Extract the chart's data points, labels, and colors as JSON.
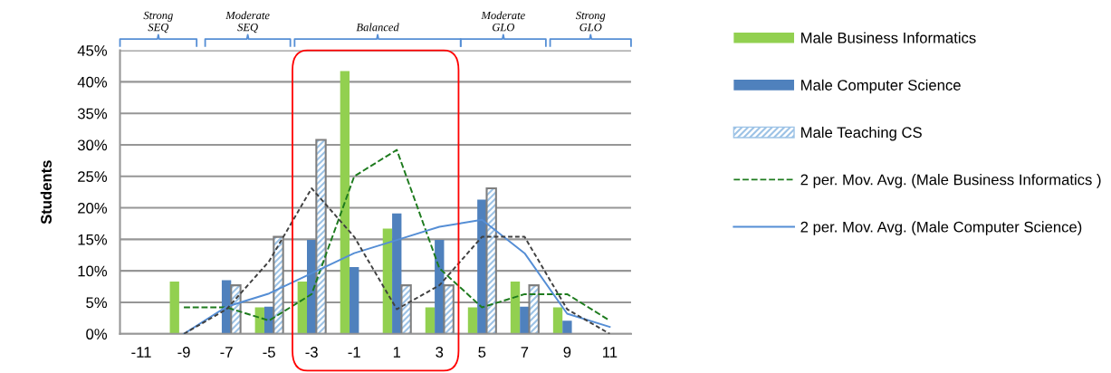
{
  "chart_data": {
    "type": "bar",
    "ylabel": "Students",
    "categories": [
      "-11",
      "-9",
      "-7",
      "-5",
      "-3",
      "-1",
      "1",
      "3",
      "5",
      "7",
      "9",
      "11"
    ],
    "series": [
      {
        "name": "Male Business Informatics",
        "color": "#92d050",
        "values": [
          0,
          8.3,
          0,
          4.2,
          8.3,
          41.7,
          16.7,
          4.2,
          4.2,
          8.3,
          4.2,
          0
        ]
      },
      {
        "name": "Male Computer Science",
        "color": "#4f81bd",
        "values": [
          0,
          0,
          8.5,
          4.3,
          14.9,
          10.6,
          19.1,
          14.9,
          21.3,
          4.3,
          2.1,
          0
        ]
      },
      {
        "name": "Male Teaching CS",
        "color": "#9dc3e6",
        "values": [
          0,
          0,
          7.7,
          15.4,
          30.8,
          0,
          7.7,
          7.7,
          23.1,
          7.7,
          0,
          0
        ]
      },
      {
        "name": "2 per. Mov. Avg. (Male Business Informatics )",
        "type": "line",
        "line_style": "dashed",
        "color": "#1e7b1e",
        "values": [
          null,
          4.2,
          4.2,
          2.1,
          6.3,
          25,
          29.2,
          10.4,
          4.2,
          6.3,
          6.3,
          2.1
        ]
      },
      {
        "name": "2 per. Mov. Avg. (Male Computer Science)",
        "type": "line",
        "line_style": "solid",
        "color": "#558ed5",
        "values": [
          null,
          0,
          4.3,
          6.4,
          9.6,
          12.8,
          14.9,
          17.0,
          18.1,
          12.8,
          3.2,
          1.1
        ]
      },
      {
        "type": "line",
        "line_style": "dotted",
        "color": "#404040",
        "values": [
          null,
          0,
          3.9,
          11.5,
          23.1,
          15.4,
          3.9,
          7.7,
          15.4,
          15.4,
          3.9,
          0
        ]
      }
    ],
    "ylim": [
      0,
      45
    ],
    "yticks": [
      {
        "value": 0,
        "label": "0%"
      },
      {
        "value": 5,
        "label": "5%"
      },
      {
        "value": 10,
        "label": "10%"
      },
      {
        "value": 15,
        "label": "15%"
      },
      {
        "value": 20,
        "label": "20%"
      },
      {
        "value": 25,
        "label": "25%"
      },
      {
        "value": 30,
        "label": "30%"
      },
      {
        "value": 35,
        "label": "35%"
      },
      {
        "value": 40,
        "label": "40%"
      },
      {
        "value": 45,
        "label": "45%"
      }
    ],
    "grid": "y",
    "legend": "right",
    "annotations": [
      "Strong\nSEQ",
      "Moderate\nSEQ",
      "Balanced",
      "Moderate\nGLO",
      "Strong\nGLO"
    ]
  }
}
